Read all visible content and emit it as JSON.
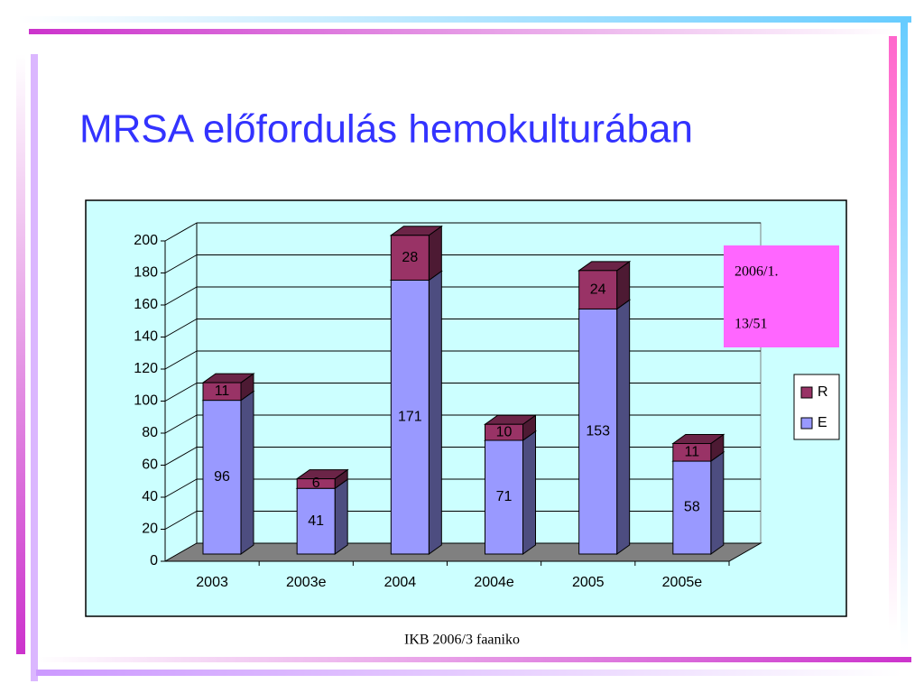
{
  "title": "MRSA előfordulás hemokulturában",
  "footer": "IKB 2006/3 faaniko",
  "chart_data": {
    "type": "bar3d_stacked",
    "categories": [
      "2003",
      "2003e",
      "2004",
      "2004e",
      "2005",
      "2005e"
    ],
    "series": [
      {
        "name": "E",
        "color": "#9999ff",
        "values": [
          96,
          41,
          171,
          71,
          153,
          58
        ]
      },
      {
        "name": "R",
        "color": "#993366",
        "values": [
          11,
          6,
          28,
          10,
          24,
          11
        ]
      }
    ],
    "ylim": [
      0,
      200
    ],
    "yticks": [
      0,
      20,
      40,
      60,
      80,
      100,
      120,
      140,
      160,
      180,
      200
    ],
    "grid": true,
    "legend": "right",
    "annotation": [
      "2006/1.",
      "13/51"
    ]
  }
}
